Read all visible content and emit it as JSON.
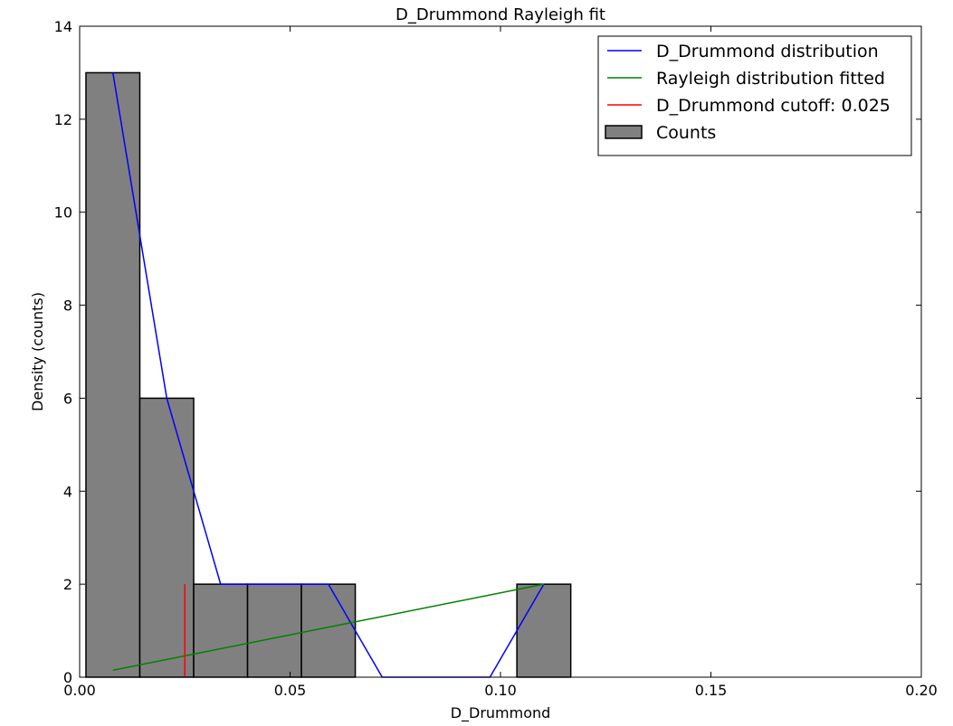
{
  "chart_data": {
    "type": "bar",
    "title": "D_Drummond Rayleigh fit",
    "xlabel": "D_Drummond",
    "ylabel": "Density (counts)",
    "xlim": [
      0.0,
      0.2
    ],
    "ylim": [
      0,
      14
    ],
    "xticks": [
      0.0,
      0.05,
      0.1,
      0.15,
      0.2
    ],
    "xtick_labels": [
      "0.00",
      "0.05",
      "0.10",
      "0.15",
      "0.20"
    ],
    "yticks": [
      0,
      2,
      4,
      6,
      8,
      10,
      12,
      14
    ],
    "ytick_labels": [
      "0",
      "2",
      "4",
      "6",
      "8",
      "10",
      "12",
      "14"
    ],
    "grid": false,
    "legend_position": "top-right",
    "histogram": {
      "name": "Counts",
      "color": "#808080",
      "bin_edges": [
        0.0015,
        0.0143,
        0.0271,
        0.0399,
        0.0527,
        0.0655,
        0.0783,
        0.0911,
        0.1039,
        0.1167
      ],
      "counts": [
        13,
        6,
        2,
        2,
        2,
        0,
        0,
        0,
        2
      ]
    },
    "series": [
      {
        "name": "D_Drummond distribution",
        "type": "line",
        "color": "#0000ff",
        "x": [
          0.0079,
          0.0207,
          0.0335,
          0.0463,
          0.0591,
          0.0719,
          0.0847,
          0.0975,
          0.1103
        ],
        "y": [
          13,
          6,
          2,
          2,
          2,
          0,
          0,
          0,
          2
        ]
      },
      {
        "name": "Rayleigh distribution fitted",
        "type": "line",
        "color": "#008000",
        "x": [
          0.0079,
          0.1103
        ],
        "y": [
          0.15,
          2.0
        ]
      },
      {
        "name": "D_Drummond cutoff: 0.025",
        "type": "vline",
        "color": "#ff0000",
        "x": 0.025,
        "y": [
          0,
          2
        ]
      }
    ]
  }
}
